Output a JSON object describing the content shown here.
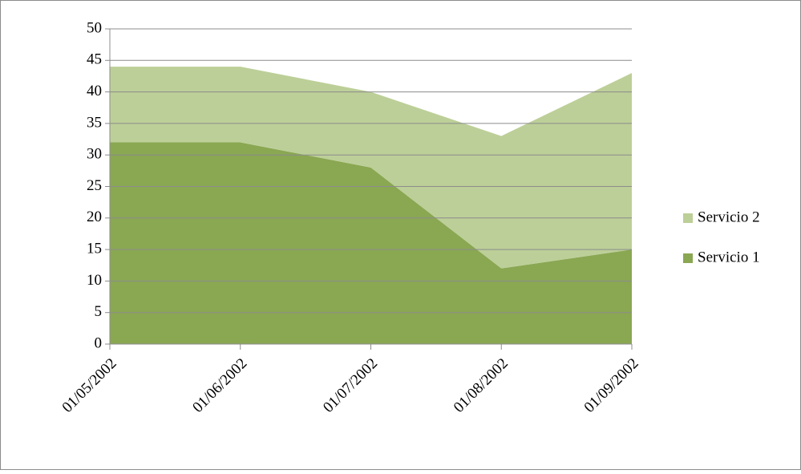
{
  "chart_data": {
    "type": "stacked_area",
    "categories": [
      "01/05/2002",
      "01/06/2002",
      "01/07/2002",
      "01/08/2002",
      "01/09/2002"
    ],
    "series": [
      {
        "name": "Servicio 1",
        "color": "#8aa752",
        "values": [
          32,
          32,
          28,
          12,
          15
        ]
      },
      {
        "name": "Servicio 2",
        "color": "#bccf98",
        "values": [
          12,
          12,
          12,
          21,
          28
        ]
      }
    ],
    "ylim": [
      0,
      50
    ],
    "yticks": [
      0,
      5,
      10,
      15,
      20,
      25,
      30,
      35,
      40,
      45,
      50
    ],
    "grid": true,
    "legend": "right"
  }
}
